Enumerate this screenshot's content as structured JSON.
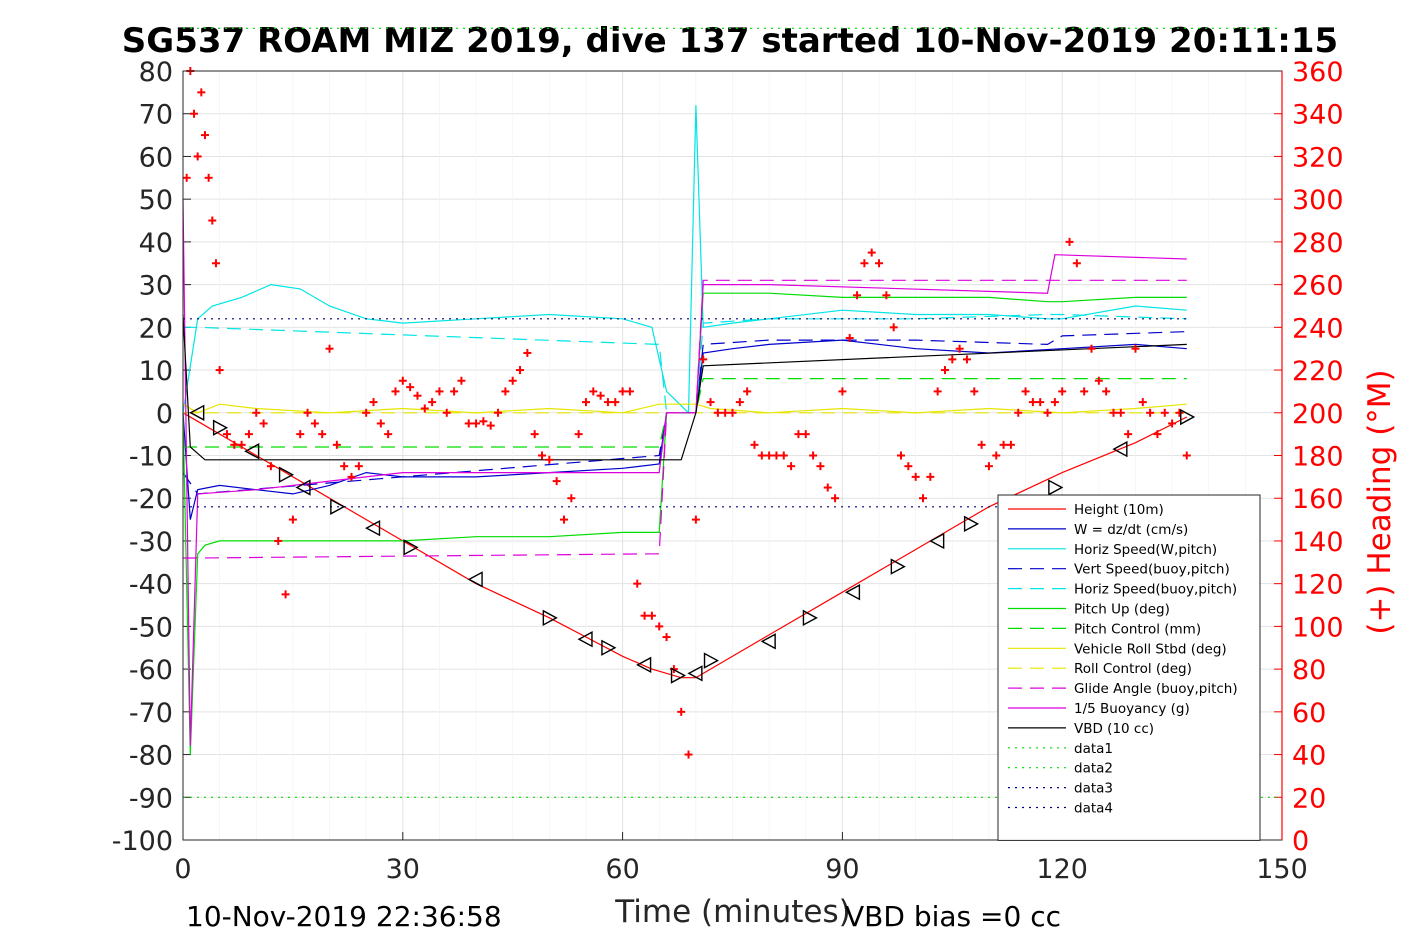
{
  "chart_data": {
    "type": "line",
    "title": "SG537 ROAM MIZ 2019, dive 137 started 10-Nov-2019 20:11:15",
    "xlabel": "Time (minutes)",
    "ylabel_right": "(+) Heading (°M)",
    "xlim": [
      0,
      150
    ],
    "ylim_left": [
      -100,
      80
    ],
    "ylim_right": [
      0,
      360
    ],
    "x_ticks": [
      0,
      30,
      60,
      90,
      120,
      150
    ],
    "y_ticks_left": [
      -100,
      -90,
      -80,
      -70,
      -60,
      -50,
      -40,
      -30,
      -20,
      -10,
      0,
      10,
      20,
      30,
      40,
      50,
      60,
      70,
      80
    ],
    "y_ticks_right": [
      0,
      20,
      40,
      60,
      80,
      100,
      120,
      140,
      160,
      180,
      200,
      220,
      240,
      260,
      280,
      300,
      320,
      340,
      360
    ],
    "grid": true,
    "legend_position": "lower-right",
    "footer_left": "10-Nov-2019 22:36:58",
    "footer_right": "VBD bias =0 cc",
    "series": [
      {
        "name": "Height (10m)",
        "color": "#ff0000",
        "style": "solid",
        "x": [
          0,
          2,
          10,
          20,
          30,
          40,
          50,
          60,
          64,
          68,
          70,
          72,
          80,
          90,
          100,
          110,
          120,
          130,
          137
        ],
        "y": [
          0,
          -2,
          -10,
          -20,
          -30,
          -40,
          -48,
          -57,
          -60,
          -62,
          -62,
          -60,
          -52,
          -42,
          -32,
          -22,
          -14,
          -7,
          -1
        ]
      },
      {
        "name": "W = dz/dt (cm/s)",
        "color": "#0000cc",
        "style": "solid",
        "x": [
          0,
          1,
          2,
          5,
          10,
          15,
          20,
          25,
          30,
          40,
          50,
          60,
          65,
          66,
          70,
          71,
          75,
          80,
          90,
          100,
          110,
          120,
          130,
          137
        ],
        "y": [
          0,
          -25,
          -18,
          -17,
          -18,
          -19,
          -17,
          -14,
          -15,
          -15,
          -14,
          -13,
          -12,
          0,
          0,
          14,
          15,
          16,
          17,
          15,
          14,
          15,
          16,
          15
        ]
      },
      {
        "name": "Horiz Speed(W,pitch)",
        "color": "#00e5e5",
        "style": "solid",
        "x": [
          0,
          2,
          4,
          8,
          12,
          16,
          20,
          25,
          30,
          40,
          50,
          60,
          64,
          66,
          69,
          70,
          71,
          75,
          80,
          90,
          100,
          110,
          118,
          120,
          130,
          137
        ],
        "y": [
          0,
          22,
          25,
          27,
          30,
          29,
          25,
          22,
          21,
          22,
          23,
          22,
          20,
          5,
          0,
          72,
          20,
          21,
          22,
          24,
          23,
          23,
          22,
          22,
          25,
          24
        ]
      },
      {
        "name": "Vert Speed(buoy,pitch)",
        "color": "#0000cc",
        "style": "dashed",
        "x": [
          0,
          2,
          65,
          66,
          70,
          71,
          80,
          100,
          118,
          120,
          137
        ],
        "y": [
          -14,
          -19,
          -10,
          0,
          0,
          16,
          17,
          17,
          16,
          18,
          19
        ]
      },
      {
        "name": "Horiz Speed(buoy,pitch)",
        "color": "#00e5e5",
        "style": "dashed",
        "x": [
          0,
          2,
          65,
          66,
          70,
          71,
          80,
          100,
          118,
          120,
          137
        ],
        "y": [
          20,
          20,
          16,
          0,
          0,
          21,
          22,
          22,
          23,
          23,
          22
        ]
      },
      {
        "name": "Pitch Up (deg)",
        "color": "#00dd00",
        "style": "solid",
        "x": [
          0,
          1,
          2,
          3,
          5,
          10,
          20,
          30,
          40,
          50,
          60,
          65,
          66,
          70,
          71,
          75,
          80,
          90,
          100,
          110,
          118,
          120,
          130,
          137
        ],
        "y": [
          0,
          -80,
          -33,
          -31,
          -30,
          -30,
          -30,
          -30,
          -29,
          -29,
          -28,
          -28,
          0,
          0,
          28,
          28,
          28,
          27,
          27,
          27,
          26,
          26,
          27,
          27
        ]
      },
      {
        "name": "Pitch Control (mm)",
        "color": "#00dd00",
        "style": "dashed",
        "x": [
          0,
          2,
          65,
          66,
          70,
          71,
          137
        ],
        "y": [
          -8,
          -8,
          -8,
          0,
          0,
          8,
          8
        ]
      },
      {
        "name": "Vehicle Roll Stbd (deg)",
        "color": "#e6e600",
        "style": "solid",
        "x": [
          0,
          2,
          5,
          10,
          20,
          30,
          40,
          50,
          60,
          65,
          70,
          72,
          80,
          90,
          100,
          110,
          120,
          130,
          137
        ],
        "y": [
          2,
          0,
          2,
          1,
          0,
          1,
          0,
          1,
          0,
          2,
          2,
          1,
          0,
          1,
          0,
          1,
          0,
          1,
          2
        ]
      },
      {
        "name": "Roll Control (deg)",
        "color": "#e6e600",
        "style": "dashed",
        "x": [
          0,
          2,
          137
        ],
        "y": [
          0,
          0,
          0
        ]
      },
      {
        "name": "Glide Angle (buoy,pitch)",
        "color": "#dd00dd",
        "style": "dashed",
        "x": [
          0,
          2,
          65,
          66,
          70,
          71,
          137
        ],
        "y": [
          -34,
          -34,
          -33,
          0,
          0,
          31,
          31
        ]
      },
      {
        "name": "1/5 Buoyancy (g)",
        "color": "#dd00dd",
        "style": "solid",
        "x": [
          0,
          1,
          2,
          10,
          20,
          30,
          65,
          66,
          70,
          71,
          80,
          118,
          119,
          137
        ],
        "y": [
          50,
          -78,
          -19,
          -18,
          -16,
          -14,
          -14,
          0,
          0,
          30,
          30,
          28,
          37,
          36
        ]
      },
      {
        "name": "VBD (10 cc)",
        "color": "#000000",
        "style": "solid",
        "x": [
          0,
          1,
          3,
          68,
          70,
          71,
          137
        ],
        "y": [
          23,
          -8,
          -11,
          -11,
          0,
          11,
          16
        ]
      },
      {
        "name": "data1",
        "color": "#00dd00",
        "style": "dotted",
        "x": [
          0,
          150
        ],
        "y": [
          -90,
          -90
        ]
      },
      {
        "name": "data2",
        "color": "#00dd00",
        "style": "dotted",
        "x": [
          0,
          150
        ],
        "y": [
          90,
          90
        ]
      },
      {
        "name": "data3",
        "color": "#000080",
        "style": "dotted",
        "x": [
          0,
          137
        ],
        "y": [
          22,
          22
        ]
      },
      {
        "name": "data4",
        "color": "#000080",
        "style": "dotted",
        "x": [
          0,
          137
        ],
        "y": [
          -22,
          -22
        ]
      }
    ],
    "heading_points": {
      "name": "(+) Heading (°M)",
      "color": "#ff0000",
      "x": [
        0.5,
        1,
        1.5,
        2,
        2.5,
        3,
        3.5,
        4,
        4.5,
        5,
        6,
        7,
        8,
        9,
        10,
        11,
        12,
        13,
        14,
        15,
        16,
        17,
        18,
        19,
        20,
        21,
        22,
        23,
        24,
        25,
        26,
        27,
        28,
        29,
        30,
        31,
        32,
        33,
        34,
        35,
        36,
        37,
        38,
        39,
        40,
        41,
        42,
        43,
        44,
        45,
        46,
        47,
        48,
        49,
        50,
        51,
        52,
        53,
        54,
        55,
        56,
        57,
        58,
        59,
        60,
        61,
        62,
        63,
        64,
        65,
        66,
        67,
        68,
        69,
        70,
        71,
        72,
        73,
        74,
        75,
        76,
        77,
        78,
        79,
        80,
        81,
        82,
        83,
        84,
        85,
        86,
        87,
        88,
        89,
        90,
        91,
        92,
        93,
        94,
        95,
        96,
        97,
        98,
        99,
        100,
        101,
        102,
        103,
        104,
        105,
        106,
        107,
        108,
        109,
        110,
        111,
        112,
        113,
        114,
        115,
        116,
        117,
        118,
        119,
        120,
        121,
        122,
        123,
        124,
        125,
        126,
        127,
        128,
        129,
        130,
        131,
        132,
        133,
        134,
        135,
        136,
        137
      ],
      "y": [
        310,
        360,
        340,
        320,
        350,
        330,
        310,
        290,
        270,
        220,
        190,
        185,
        185,
        190,
        200,
        195,
        175,
        140,
        115,
        150,
        190,
        200,
        195,
        190,
        230,
        185,
        175,
        170,
        175,
        200,
        205,
        195,
        190,
        210,
        215,
        212,
        208,
        202,
        205,
        210,
        200,
        210,
        215,
        195,
        195,
        196,
        194,
        200,
        210,
        215,
        220,
        228,
        190,
        180,
        178,
        168,
        150,
        160,
        190,
        205,
        210,
        208,
        205,
        205,
        210,
        210,
        120,
        105,
        105,
        100,
        95,
        80,
        60,
        40,
        150,
        225,
        205,
        200,
        200,
        200,
        205,
        210,
        185,
        180,
        180,
        180,
        180,
        175,
        190,
        190,
        180,
        175,
        165,
        160,
        210,
        235,
        255,
        270,
        275,
        270,
        255,
        240,
        180,
        175,
        170,
        160,
        170,
        210,
        220,
        225,
        230,
        225,
        210,
        185,
        175,
        180,
        185,
        185,
        200,
        210,
        205,
        205,
        200,
        205,
        210,
        280,
        270,
        210,
        230,
        215,
        210,
        200,
        200,
        190,
        230,
        205,
        200,
        190,
        200,
        195,
        200,
        180
      ]
    },
    "markers": {
      "name": "Height markers",
      "color": "#000000",
      "x": [
        2,
        5,
        9.5,
        14,
        16.5,
        21,
        26,
        31,
        40,
        50,
        55,
        58,
        63,
        67.5,
        70,
        72,
        80,
        85.5,
        91.5,
        97.5,
        103,
        107.5,
        113,
        119,
        128,
        137
      ],
      "y": [
        0,
        -3.5,
        -9,
        -14.5,
        -17.5,
        -22,
        -27,
        -31.5,
        -39,
        -48,
        -53,
        -55,
        -59,
        -61.5,
        -61,
        -58,
        -53.5,
        -48,
        -42,
        -36,
        -30,
        -26,
        -22,
        -17.5,
        -8.5,
        -1
      ]
    }
  }
}
